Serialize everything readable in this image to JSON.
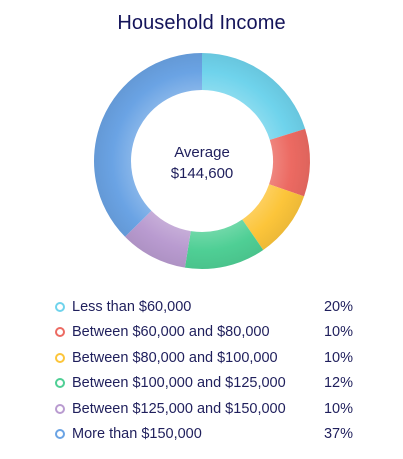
{
  "chart_data": {
    "type": "pie",
    "variant": "donut",
    "title": "Household Income",
    "center_label": "Average",
    "center_value": "$144,600",
    "legend_position": "bottom",
    "categories": [
      "Less than $60,000",
      "Between $60,000 and $80,000",
      "Between $80,000 and $100,000",
      "Between $100,000 and $125,000",
      "Between $125,000 and $150,000",
      "More than $150,000"
    ],
    "values": [
      20,
      10,
      10,
      12,
      10,
      37
    ],
    "value_labels": [
      "20%",
      "10%",
      "10%",
      "12%",
      "10%",
      "37%"
    ],
    "colors": [
      "#6fd3ec",
      "#ec6a62",
      "#fcc53a",
      "#4fcf95",
      "#b99bd0",
      "#6aa3e4"
    ]
  }
}
